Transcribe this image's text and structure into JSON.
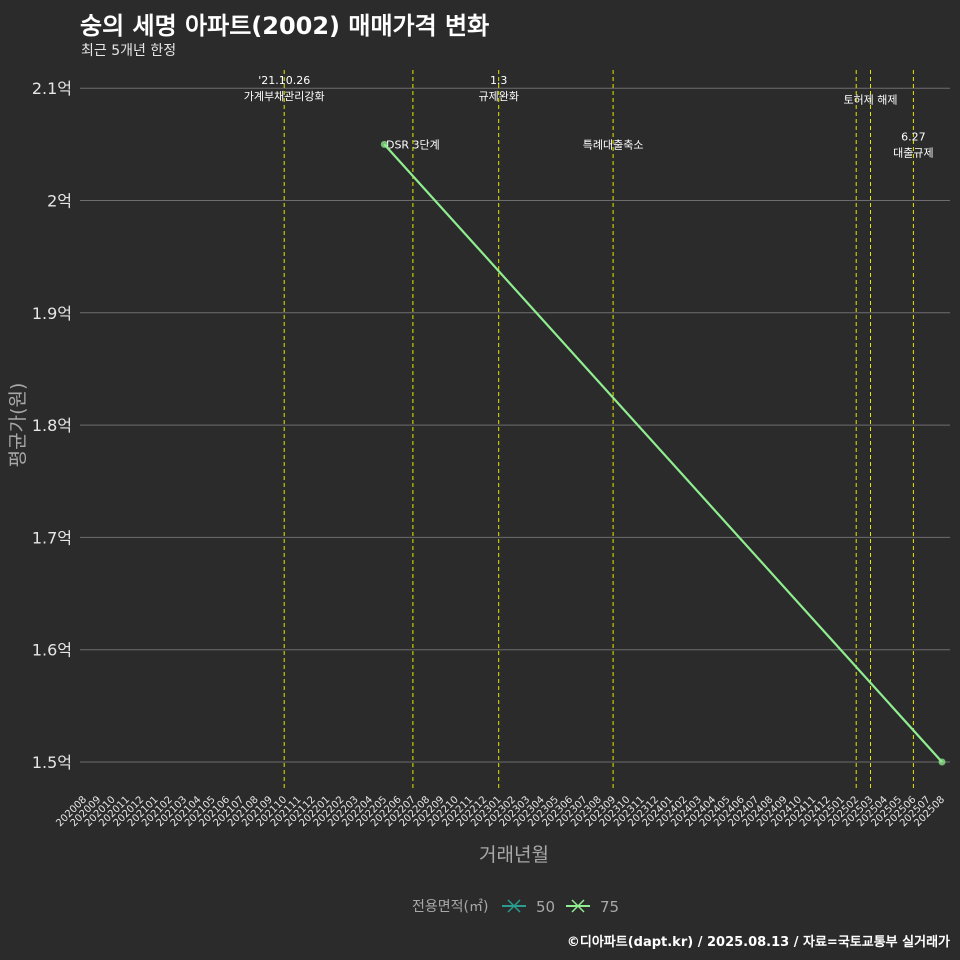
{
  "chart_data": {
    "type": "line",
    "title": "숭의 세명 아파트(2002) 매매가격 변화",
    "subtitle": "최근 5개년 한정",
    "xlabel": "거래년월",
    "ylabel": "평균가(원)",
    "y_ticks": [
      1.5,
      1.6,
      1.7,
      1.8,
      1.9,
      2.0,
      2.1
    ],
    "y_tick_labels": [
      "1.5억",
      "1.6억",
      "1.7억",
      "1.8억",
      "1.9억",
      "2억",
      "2.1억"
    ],
    "ylim": [
      1.47,
      2.12
    ],
    "categories": [
      "202008",
      "202009",
      "202010",
      "202011",
      "202012",
      "202101",
      "202102",
      "202103",
      "202104",
      "202105",
      "202106",
      "202107",
      "202108",
      "202109",
      "202110",
      "202111",
      "202112",
      "202201",
      "202202",
      "202203",
      "202204",
      "202205",
      "202206",
      "202207",
      "202208",
      "202209",
      "202210",
      "202211",
      "202212",
      "202301",
      "202302",
      "202303",
      "202304",
      "202305",
      "202306",
      "202307",
      "202308",
      "202309",
      "202310",
      "202311",
      "202312",
      "202401",
      "202402",
      "202403",
      "202404",
      "202405",
      "202406",
      "202407",
      "202408",
      "202409",
      "202410",
      "202411",
      "202412",
      "202501",
      "202502",
      "202503",
      "202504",
      "202505",
      "202506",
      "202507",
      "202508"
    ],
    "series": [
      {
        "name": "50",
        "color": "#2a9d8f",
        "points": []
      },
      {
        "name": "75",
        "color": "#90ee90",
        "points": [
          {
            "x": "202205",
            "y": 2.05
          },
          {
            "x": "202508",
            "y": 1.5
          }
        ]
      }
    ],
    "legend": {
      "title": "전용면적(㎡)",
      "position": "bottom"
    },
    "events": [
      {
        "x": "202110",
        "lines": [
          "'21.10.26",
          "가계부채관리강화"
        ],
        "y": 2.1
      },
      {
        "x": "202207",
        "lines": [
          "DSR 3단계"
        ],
        "y": 2.05
      },
      {
        "x": "202301",
        "lines": [
          "1.3",
          "규제완화"
        ],
        "y": 2.1
      },
      {
        "x": "202309",
        "lines": [
          "특례대출축소"
        ],
        "y": 2.05
      },
      {
        "x": "202502",
        "lines": [],
        "y": 2.1
      },
      {
        "x": "202503",
        "lines": [
          "토허제 해제"
        ],
        "y": 2.09
      },
      {
        "x": "202506",
        "lines": [
          "6.27",
          "대출규제"
        ],
        "y": 2.05
      }
    ],
    "event_line_color": "#e5e500"
  },
  "caption": "©디아파트(dapt.kr) / 2025.08.13 / 자료=국토교통부 실거래가"
}
